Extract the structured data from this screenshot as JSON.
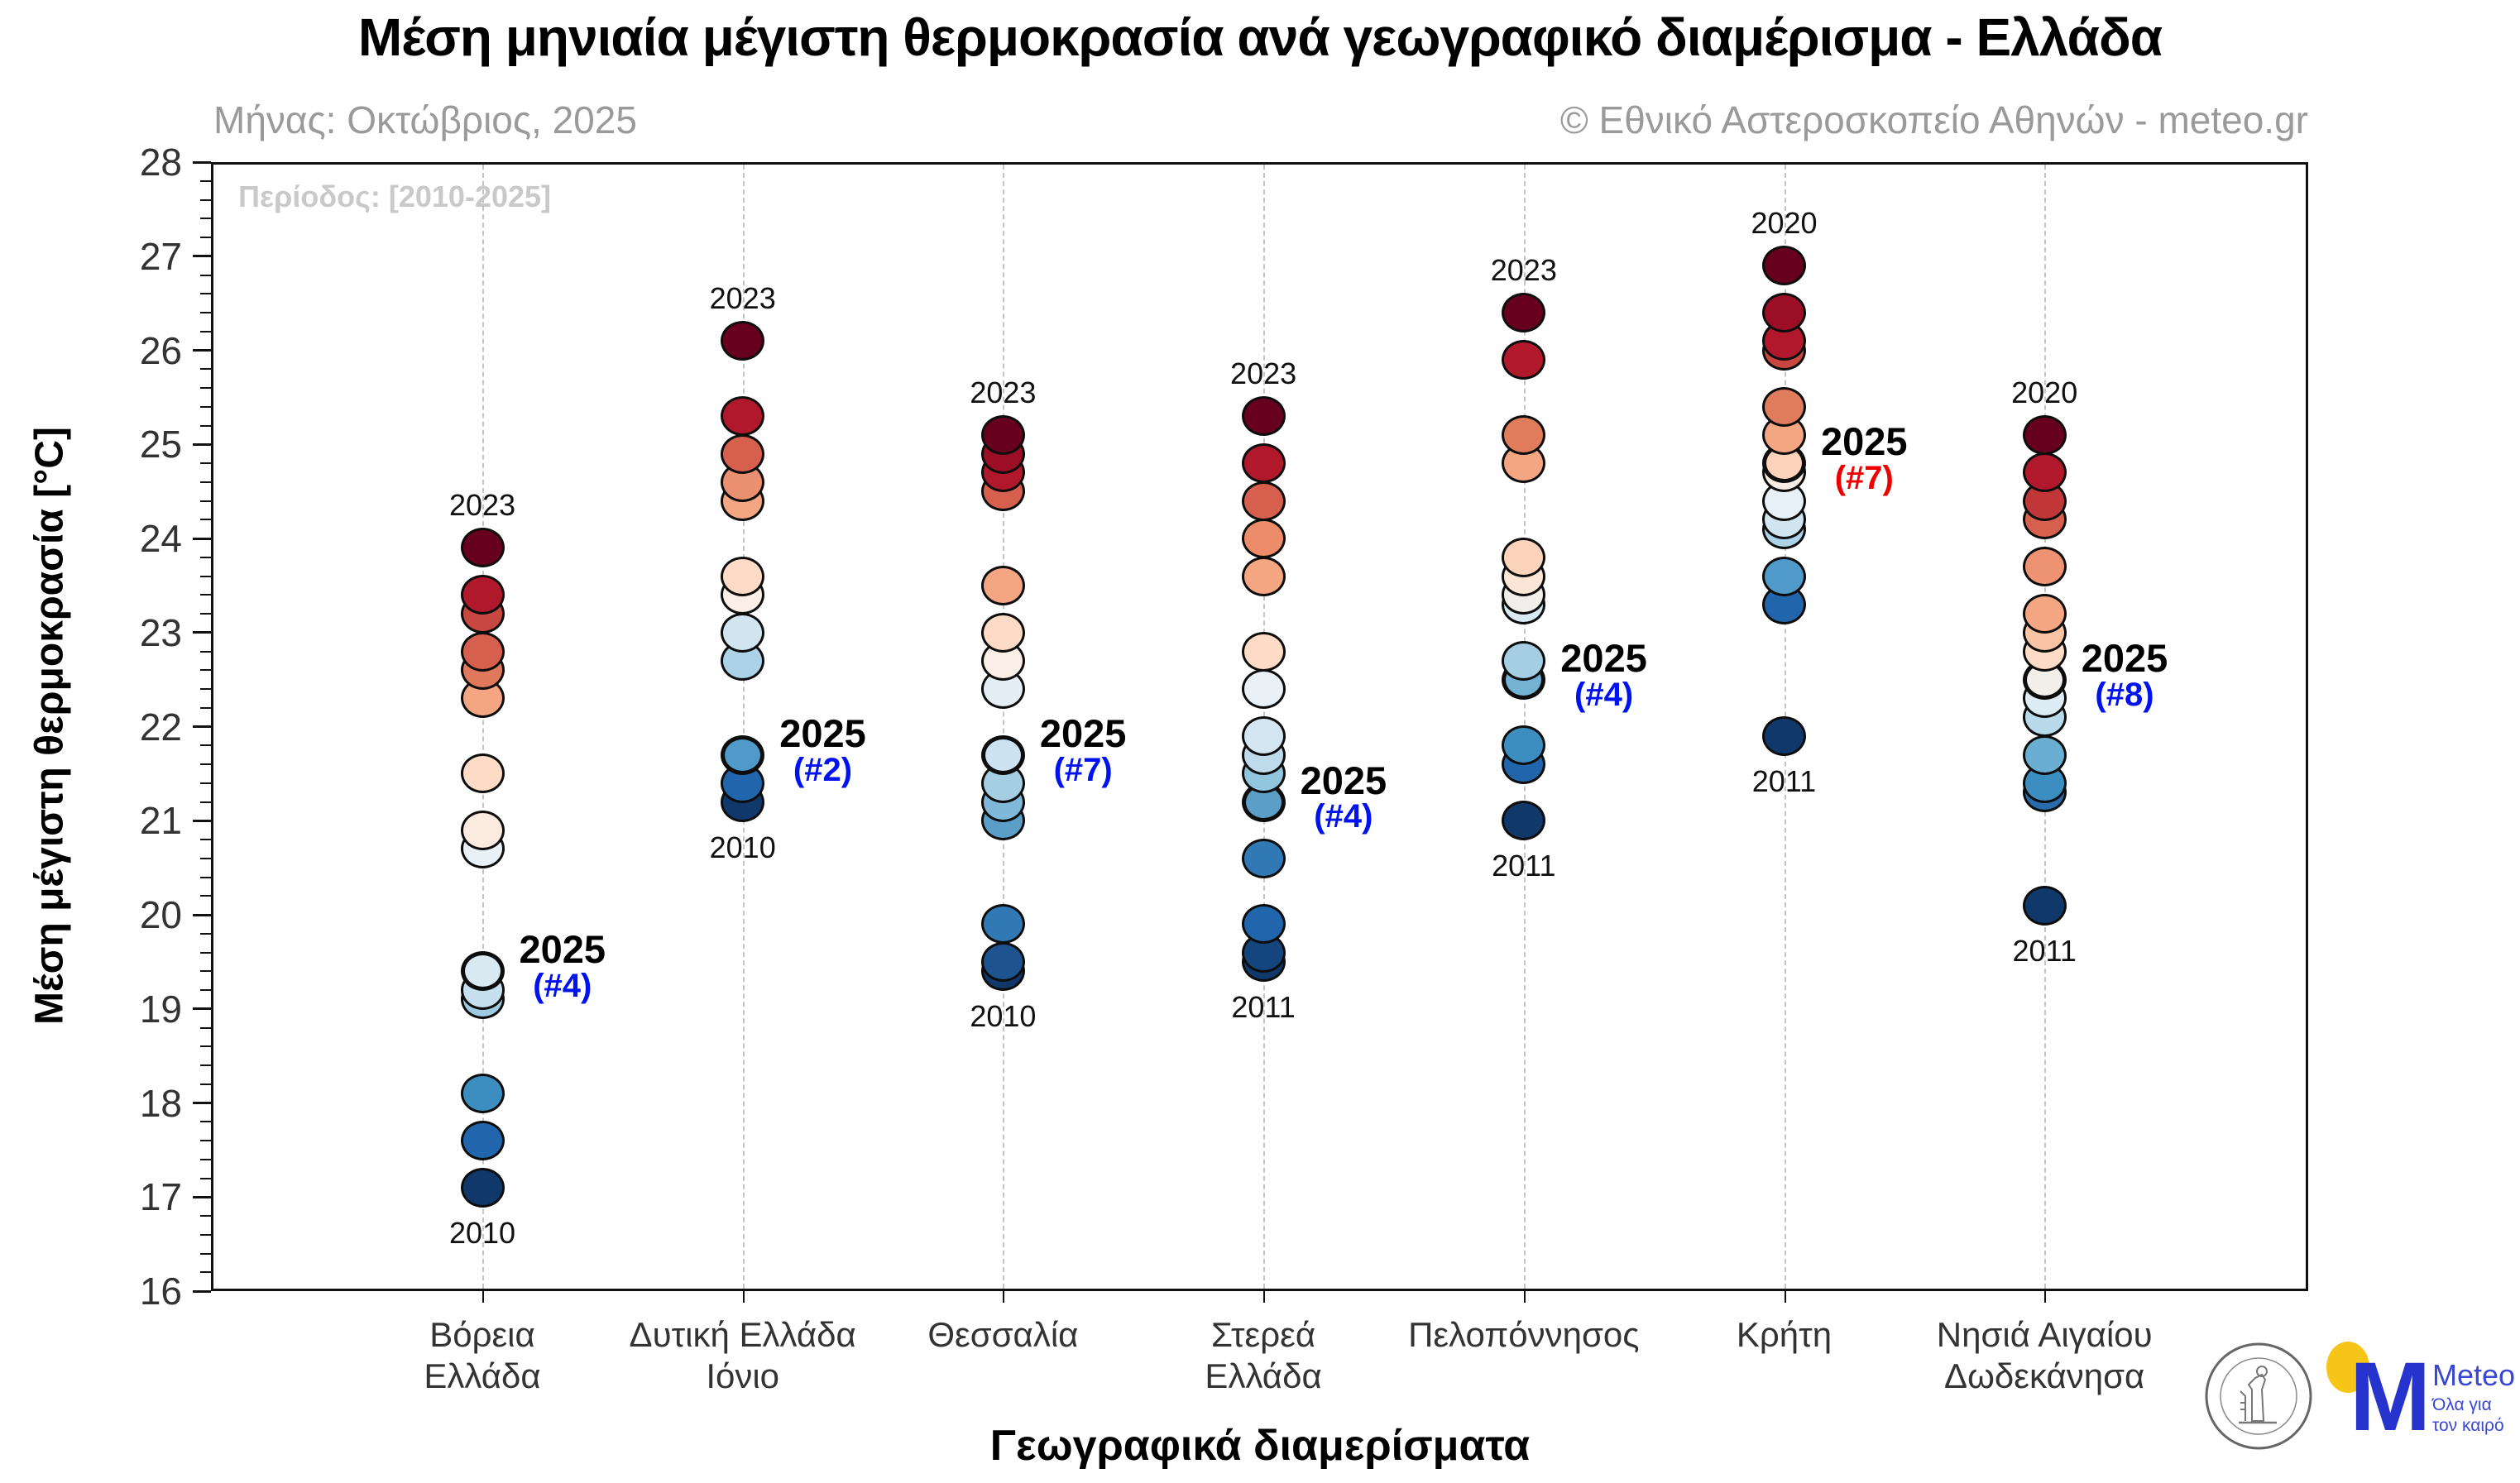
{
  "header": {
    "title": "Μέση μηνιαία μέγιστη θερμοκρασία ανά γεωγραφικό διαμέρισμα - Ελλάδα",
    "subtitle_left": "Μήνας: Οκτώβριος, 2025",
    "subtitle_right": "© Εθνικό Αστεροσκοπείο Αθηνών - meteo.gr"
  },
  "annotation": "Περίοδος: [2010-2025]",
  "logos": {
    "noa_seal_text": "ΕΘΝΙΚΟΝ ΑΣΤΕΡΟΣΚΟΠΕΙΟΝ ΑΘΗΝΩΝ • NATIONAL OBSERVATORY OF ATHENS",
    "meteo_m": "M",
    "meteo_name": "Meteo",
    "meteo_tagline_line1": "Όλα για",
    "meteo_tagline_line2": "τον καιρό"
  },
  "chart_data": {
    "type": "scatter",
    "title": "Μέση μηνιαία μέγιστη θερμοκρασία ανά γεωγραφικό διαμέρισμα - Ελλάδα",
    "xlabel": "Γεωγραφικά διαμερίσματα",
    "ylabel": "Μέση μέγιστη θερμοκρασία [°C]",
    "ylim": [
      16,
      28
    ],
    "y_ticks": [
      16,
      17,
      18,
      19,
      20,
      21,
      22,
      23,
      24,
      25,
      26,
      27,
      28
    ],
    "minor_tick_step": 0.2,
    "grid": "vertical-dashed-per-category",
    "legend": "none",
    "period_years": "2010-2025",
    "columns": [
      {
        "category": "Βόρεια Ελλάδα",
        "label_lines": [
          "Βόρεια",
          "Ελλάδα"
        ],
        "top_label": {
          "text": "2023",
          "value": 23.9
        },
        "bottom_label": {
          "text": "2010",
          "value": 17.1
        },
        "side_label": {
          "text": "2025",
          "rank": "(#4)",
          "value": 19.4,
          "rank_color": "#0012ee"
        },
        "points": [
          {
            "t": 23.9,
            "c": "#67001f"
          },
          {
            "t": 23.4,
            "c": "#b2182b"
          },
          {
            "t": 23.2,
            "c": "#c94741"
          },
          {
            "t": 22.8,
            "c": "#d6604d"
          },
          {
            "t": 22.6,
            "c": "#e0795c"
          },
          {
            "t": 22.3,
            "c": "#f4a582"
          },
          {
            "t": 21.5,
            "c": "#fddbc7"
          },
          {
            "t": 20.9,
            "c": "#faeae0"
          },
          {
            "t": 20.7,
            "c": "#e8f1f6"
          },
          {
            "t": 19.4,
            "c": "#d9e9f2",
            "is2025": true
          },
          {
            "t": 19.2,
            "c": "#c6e0ef"
          },
          {
            "t": 19.1,
            "c": "#9fcbe1"
          },
          {
            "t": 18.1,
            "c": "#3d8ec0"
          },
          {
            "t": 17.6,
            "c": "#2166ac"
          },
          {
            "t": 17.1,
            "c": "#10386b"
          }
        ]
      },
      {
        "category": "Δυτική Ελλάδα Ιόνιο",
        "label_lines": [
          "Δυτική Ελλάδα",
          "Ιόνιο"
        ],
        "top_label": {
          "text": "2023",
          "value": 26.1
        },
        "bottom_label": {
          "text": "2010",
          "value": 21.2
        },
        "side_label": {
          "text": "2025",
          "rank": "(#2)",
          "value": 21.7,
          "rank_color": "#0012ee"
        },
        "points": [
          {
            "t": 26.1,
            "c": "#67001f"
          },
          {
            "t": 25.3,
            "c": "#b2182b"
          },
          {
            "t": 24.9,
            "c": "#d6604d"
          },
          {
            "t": 24.6,
            "c": "#ea9070"
          },
          {
            "t": 24.4,
            "c": "#f4a582"
          },
          {
            "t": 23.6,
            "c": "#fddbc7"
          },
          {
            "t": 23.4,
            "c": "#faeee6"
          },
          {
            "t": 23.0,
            "c": "#d1e5f0"
          },
          {
            "t": 22.7,
            "c": "#abd2e6"
          },
          {
            "t": 21.7,
            "c": "#4f9ac8",
            "is2025": true
          },
          {
            "t": 21.4,
            "c": "#2166ac"
          },
          {
            "t": 21.2,
            "c": "#10386b"
          }
        ]
      },
      {
        "category": "Θεσσαλία",
        "label_lines": [
          "Θεσσαλία"
        ],
        "top_label": {
          "text": "2023",
          "value": 25.1
        },
        "bottom_label": {
          "text": "2010",
          "value": 19.4
        },
        "side_label": {
          "text": "2025",
          "rank": "(#7)",
          "value": 21.7,
          "rank_color": "#0012ee"
        },
        "points": [
          {
            "t": 25.1,
            "c": "#67001f"
          },
          {
            "t": 24.9,
            "c": "#9b0e26"
          },
          {
            "t": 24.7,
            "c": "#b2182b"
          },
          {
            "t": 24.5,
            "c": "#d6604d"
          },
          {
            "t": 23.5,
            "c": "#f4a582"
          },
          {
            "t": 23.0,
            "c": "#fddbc7"
          },
          {
            "t": 22.7,
            "c": "#faeee6"
          },
          {
            "t": 22.4,
            "c": "#e4eef5"
          },
          {
            "t": 21.7,
            "c": "#cce2f0",
            "is2025": true
          },
          {
            "t": 21.4,
            "c": "#a6cee3"
          },
          {
            "t": 21.2,
            "c": "#7fb8d9"
          },
          {
            "t": 21.0,
            "c": "#5b9fc9"
          },
          {
            "t": 19.9,
            "c": "#3079b5"
          },
          {
            "t": 19.5,
            "c": "#1d5490"
          },
          {
            "t": 19.4,
            "c": "#10386b"
          }
        ]
      },
      {
        "category": "Στερεά Ελλάδα",
        "label_lines": [
          "Στερεά",
          "Ελλάδα"
        ],
        "top_label": {
          "text": "2023",
          "value": 25.3
        },
        "bottom_label": {
          "text": "2011",
          "value": 19.5
        },
        "side_label": {
          "text": "2025",
          "rank": "(#4)",
          "value": 21.2,
          "rank_color": "#0012ee"
        },
        "points": [
          {
            "t": 25.3,
            "c": "#67001f"
          },
          {
            "t": 24.8,
            "c": "#b2182b"
          },
          {
            "t": 24.4,
            "c": "#d6604d"
          },
          {
            "t": 24.0,
            "c": "#ec8c68"
          },
          {
            "t": 23.6,
            "c": "#f4a582"
          },
          {
            "t": 22.8,
            "c": "#fddbc7"
          },
          {
            "t": 22.4,
            "c": "#e9f1f6"
          },
          {
            "t": 21.9,
            "c": "#d3e6f1"
          },
          {
            "t": 21.7,
            "c": "#bddbeb"
          },
          {
            "t": 21.5,
            "c": "#92c5de"
          },
          {
            "t": 21.2,
            "c": "#5b9fc9",
            "is2025": true
          },
          {
            "t": 20.6,
            "c": "#3079b5"
          },
          {
            "t": 19.9,
            "c": "#2166ac"
          },
          {
            "t": 19.6,
            "c": "#15457d"
          },
          {
            "t": 19.5,
            "c": "#10386b"
          }
        ]
      },
      {
        "category": "Πελοπόννησος",
        "label_lines": [
          "Πελοπόννησος"
        ],
        "top_label": {
          "text": "2023",
          "value": 26.4
        },
        "bottom_label": {
          "text": "2011",
          "value": 21.0
        },
        "side_label": {
          "text": "2025",
          "rank": "(#4)",
          "value": 22.5,
          "rank_color": "#0012ee"
        },
        "points": [
          {
            "t": 26.4,
            "c": "#67001f"
          },
          {
            "t": 25.9,
            "c": "#b2182b"
          },
          {
            "t": 25.1,
            "c": "#e07b5b"
          },
          {
            "t": 24.8,
            "c": "#f4a582"
          },
          {
            "t": 23.8,
            "c": "#fbd3ba"
          },
          {
            "t": 23.6,
            "c": "#fae5d6"
          },
          {
            "t": 23.4,
            "c": "#f0eeea"
          },
          {
            "t": 23.3,
            "c": "#d9e9f2"
          },
          {
            "t": 22.7,
            "c": "#a6cee3"
          },
          {
            "t": 22.5,
            "c": "#74b2d4",
            "is2025": true
          },
          {
            "t": 21.8,
            "c": "#3d8ec0"
          },
          {
            "t": 21.6,
            "c": "#2166ac"
          },
          {
            "t": 21.0,
            "c": "#10386b"
          }
        ]
      },
      {
        "category": "Κρήτη",
        "label_lines": [
          "Κρήτη"
        ],
        "top_label": {
          "text": "2020",
          "value": 26.9
        },
        "bottom_label": {
          "text": "2011",
          "value": 21.9
        },
        "side_label": {
          "text": "2025",
          "rank": "(#7)",
          "value": 24.8,
          "rank_color": "#ee0000"
        },
        "points": [
          {
            "t": 26.9,
            "c": "#67001f"
          },
          {
            "t": 26.4,
            "c": "#9b0e26"
          },
          {
            "t": 26.1,
            "c": "#b2182b"
          },
          {
            "t": 26.0,
            "c": "#c94741"
          },
          {
            "t": 25.4,
            "c": "#e07b5b"
          },
          {
            "t": 25.1,
            "c": "#f4a582"
          },
          {
            "t": 24.8,
            "c": "#fbd3ba",
            "is2025": true
          },
          {
            "t": 24.7,
            "c": "#f7ede3"
          },
          {
            "t": 24.4,
            "c": "#e7f0f6"
          },
          {
            "t": 24.2,
            "c": "#d1e5f0"
          },
          {
            "t": 24.1,
            "c": "#abd2e6"
          },
          {
            "t": 23.6,
            "c": "#4f9ac8"
          },
          {
            "t": 23.3,
            "c": "#2166ac"
          },
          {
            "t": 21.9,
            "c": "#10386b"
          }
        ]
      },
      {
        "category": "Νησιά Αιγαίου Δωδεκάνησα",
        "label_lines": [
          "Νησιά Αιγαίου",
          "Δωδεκάνησα"
        ],
        "top_label": {
          "text": "2020",
          "value": 25.1
        },
        "bottom_label": {
          "text": "2011",
          "value": 20.1
        },
        "side_label": {
          "text": "2025",
          "rank": "(#8)",
          "value": 22.5,
          "rank_color": "#0012ee"
        },
        "points": [
          {
            "t": 25.1,
            "c": "#67001f"
          },
          {
            "t": 24.7,
            "c": "#b2182b"
          },
          {
            "t": 24.4,
            "c": "#c13639"
          },
          {
            "t": 24.2,
            "c": "#d6604d"
          },
          {
            "t": 23.7,
            "c": "#ee9372"
          },
          {
            "t": 23.2,
            "c": "#f4a582"
          },
          {
            "t": 23.0,
            "c": "#f9c4a4"
          },
          {
            "t": 22.8,
            "c": "#fddbc7"
          },
          {
            "t": 22.5,
            "c": "#f2efeb",
            "is2025": true
          },
          {
            "t": 22.3,
            "c": "#dcebf4"
          },
          {
            "t": 22.1,
            "c": "#b8d9ea"
          },
          {
            "t": 21.7,
            "c": "#6aaed1"
          },
          {
            "t": 21.4,
            "c": "#3d8ec0"
          },
          {
            "t": 21.3,
            "c": "#2a6cab"
          },
          {
            "t": 20.1,
            "c": "#10386b"
          }
        ]
      }
    ]
  }
}
